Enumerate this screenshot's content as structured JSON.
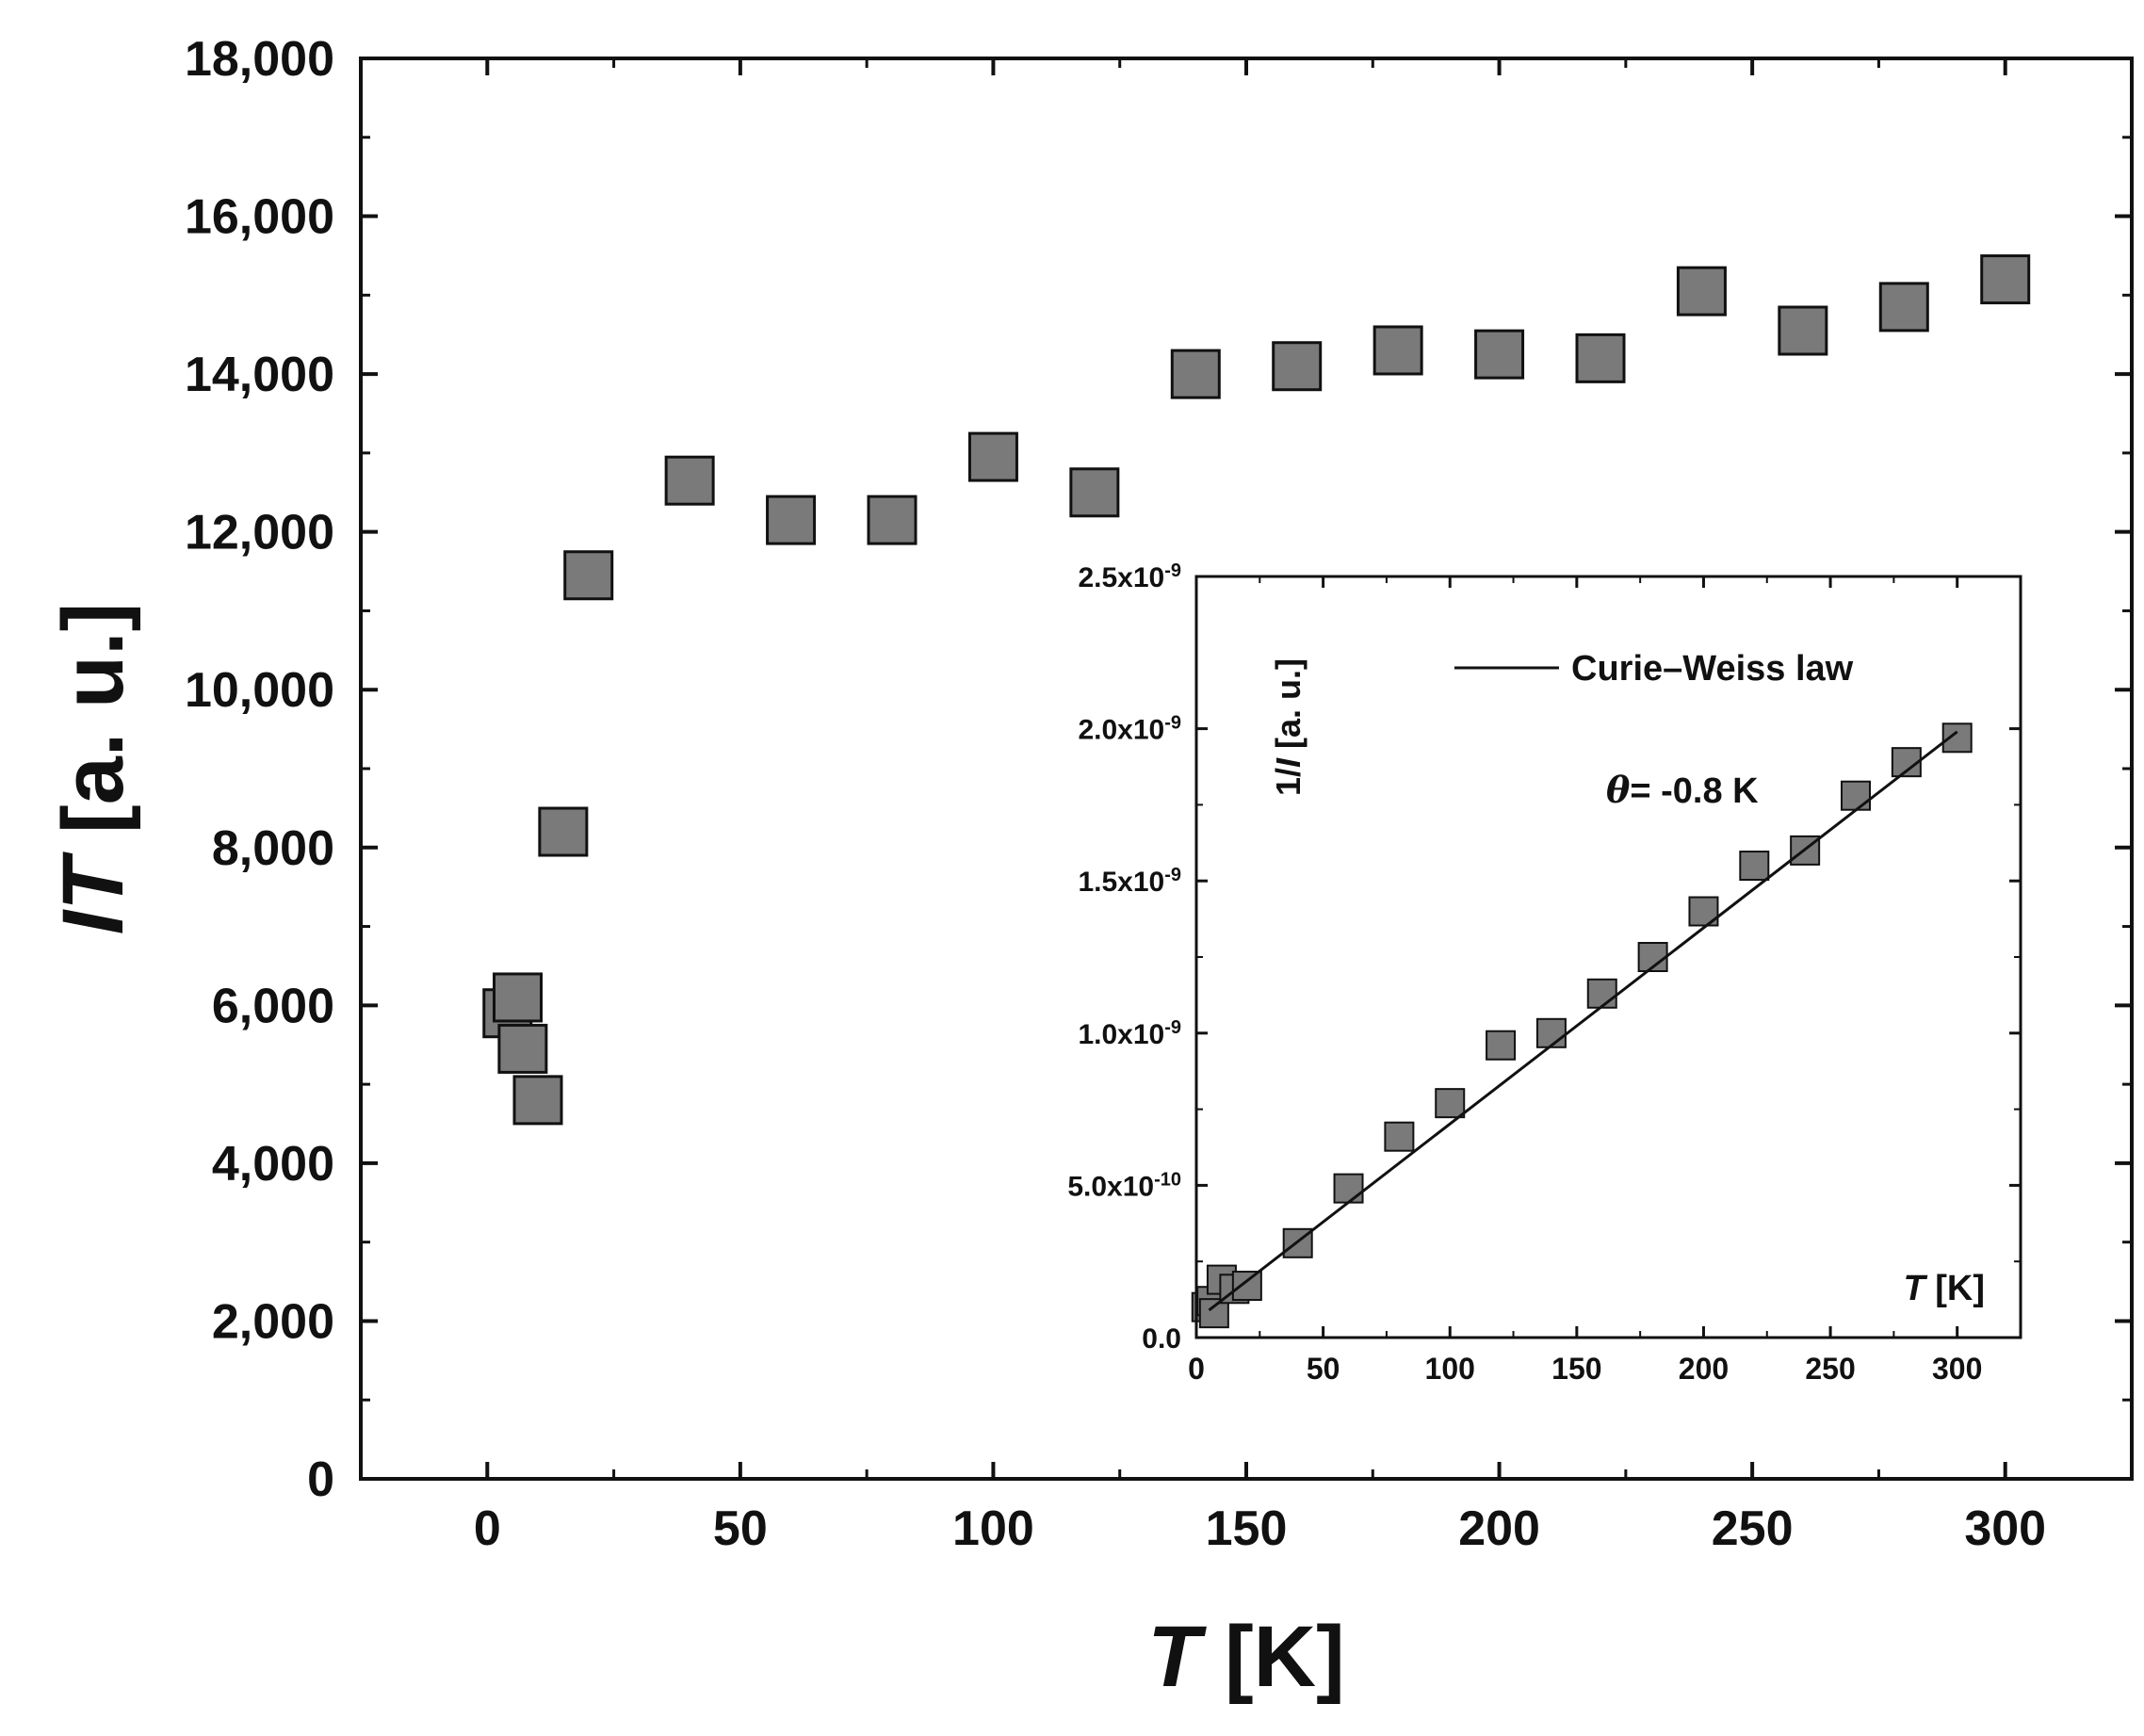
{
  "chart_data": [
    {
      "id": "main",
      "type": "scatter",
      "title": "",
      "xlabel": "T [K]",
      "ylabel": "IT [a. u.]",
      "xlim": [
        -25,
        325
      ],
      "ylim": [
        0,
        18000
      ],
      "xticks": [
        0,
        50,
        100,
        150,
        200,
        250,
        300
      ],
      "xtick_labels": [
        "0",
        "50",
        "100",
        "150",
        "200",
        "250",
        "300"
      ],
      "yticks": [
        0,
        2000,
        4000,
        6000,
        8000,
        10000,
        12000,
        14000,
        16000,
        18000
      ],
      "ytick_labels": [
        "0",
        "2,000",
        "4,000",
        "6,000",
        "8,000",
        "10,000",
        "12,000",
        "14,000",
        "16,000",
        "18,000"
      ],
      "series": [
        {
          "name": "IT",
          "marker": "square",
          "color": "#7a7a7a",
          "points": [
            [
              4,
              5900
            ],
            [
              6,
              6100
            ],
            [
              7,
              5450
            ],
            [
              10,
              4800
            ],
            [
              15,
              8200
            ],
            [
              20,
              11450
            ],
            [
              40,
              12650
            ],
            [
              60,
              12150
            ],
            [
              80,
              12150
            ],
            [
              100,
              12950
            ],
            [
              120,
              12500
            ],
            [
              140,
              14000
            ],
            [
              160,
              14100
            ],
            [
              180,
              14300
            ],
            [
              200,
              14250
            ],
            [
              220,
              14200
            ],
            [
              240,
              15050
            ],
            [
              260,
              14550
            ],
            [
              280,
              14850
            ],
            [
              300,
              15200
            ]
          ]
        }
      ]
    },
    {
      "id": "inset",
      "type": "scatter",
      "title": "",
      "xlabel": "T [K]",
      "ylabel": "1/I [a. u.]",
      "xlim": [
        0,
        325
      ],
      "ylim": [
        0,
        2.5e-09
      ],
      "xticks": [
        0,
        50,
        100,
        150,
        200,
        250,
        300
      ],
      "xtick_labels": [
        "0",
        "50",
        "100",
        "150",
        "200",
        "250",
        "300"
      ],
      "yticks": [
        0,
        5e-10,
        1e-09,
        1.5e-09,
        2e-09,
        2.5e-09
      ],
      "ytick_labels": [
        {
          "mant": "0.0",
          "exp": ""
        },
        {
          "mant": "5.0x10",
          "exp": "-10"
        },
        {
          "mant": "1.0x10",
          "exp": "-9"
        },
        {
          "mant": "1.5x10",
          "exp": "-9"
        },
        {
          "mant": "2.0x10",
          "exp": "-9"
        },
        {
          "mant": "2.5x10",
          "exp": "-9"
        }
      ],
      "series": [
        {
          "name": "1/I",
          "marker": "square",
          "color": "#7a7a7a",
          "points": [
            [
              4,
              1e-10
            ],
            [
              6,
              1.2e-10
            ],
            [
              7,
              8e-11
            ],
            [
              10,
              1.9e-10
            ],
            [
              15,
              1.6e-10
            ],
            [
              20,
              1.7e-10
            ],
            [
              40,
              3.1e-10
            ],
            [
              60,
              4.9e-10
            ],
            [
              80,
              6.6e-10
            ],
            [
              100,
              7.7e-10
            ],
            [
              120,
              9.6e-10
            ],
            [
              140,
              1e-09
            ],
            [
              160,
              1.13e-09
            ],
            [
              180,
              1.25e-09
            ],
            [
              200,
              1.4e-09
            ],
            [
              220,
              1.55e-09
            ],
            [
              240,
              1.6e-09
            ],
            [
              260,
              1.78e-09
            ],
            [
              280,
              1.89e-09
            ],
            [
              300,
              1.97e-09
            ]
          ]
        },
        {
          "name": "Curie–Weiss law",
          "type": "line",
          "color": "#111111",
          "points": [
            [
              5,
              9e-11
            ],
            [
              300,
              1.99e-09
            ]
          ]
        }
      ],
      "legend": {
        "label": "Curie–Weiss law",
        "placement": "top-right"
      },
      "annotation": {
        "symbol": "θ",
        "text": "= -0.8 K"
      }
    }
  ]
}
